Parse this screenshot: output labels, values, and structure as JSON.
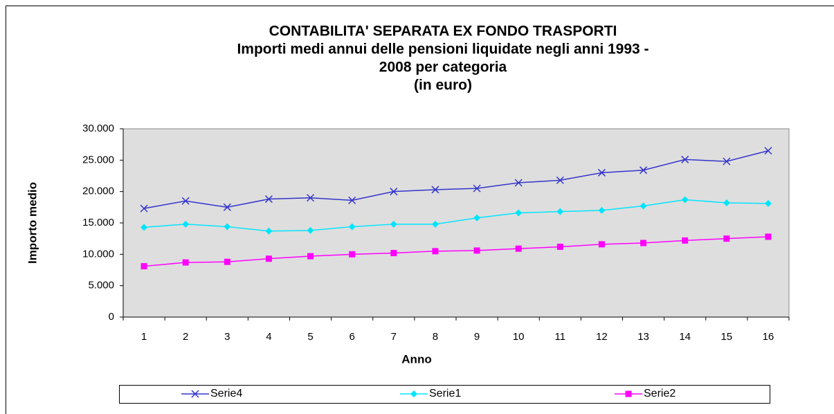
{
  "chart_data": {
    "type": "line",
    "title": [
      "CONTABILITA' SEPARATA EX FONDO TRASPORTI",
      "Importi medi annui delle pensioni liquidate negli anni 1993 -",
      "2008 per categoria",
      "(in euro)"
    ],
    "x_label": "Anno",
    "y_label": "Importo medio",
    "categories": [
      "1",
      "2",
      "3",
      "4",
      "5",
      "6",
      "7",
      "8",
      "9",
      "10",
      "11",
      "12",
      "13",
      "14",
      "15",
      "16"
    ],
    "series": [
      {
        "name": "Serie4",
        "color": "#3333cc",
        "marker": "x",
        "values": [
          17300,
          18500,
          17500,
          18800,
          19000,
          18600,
          20000,
          20300,
          20500,
          21400,
          21800,
          23000,
          23400,
          25100,
          24800,
          26500
        ]
      },
      {
        "name": "Serie1",
        "color": "#00e5ff",
        "marker": "diamond",
        "values": [
          14300,
          14800,
          14400,
          13700,
          13800,
          14400,
          14800,
          14800,
          15800,
          16600,
          16800,
          17000,
          17700,
          18700,
          18200,
          18100
        ]
      },
      {
        "name": "Serie2",
        "color": "#ff00ff",
        "marker": "square",
        "values": [
          8100,
          8700,
          8800,
          9300,
          9700,
          10000,
          10200,
          10500,
          10600,
          10900,
          11200,
          11600,
          11800,
          12200,
          12500,
          12800
        ]
      }
    ],
    "ylim": [
      0,
      30000
    ],
    "yticks": [
      0,
      {
        "value": 5000,
        "label": "5.000"
      },
      {
        "value": 10000,
        "label": "10.000"
      },
      {
        "value": 15000,
        "label": "15.000"
      },
      {
        "value": 20000,
        "label": "20.000"
      },
      {
        "value": 25000,
        "label": "25.000"
      },
      {
        "value": 30000,
        "label": "30.000"
      }
    ],
    "legend": "bottom"
  }
}
